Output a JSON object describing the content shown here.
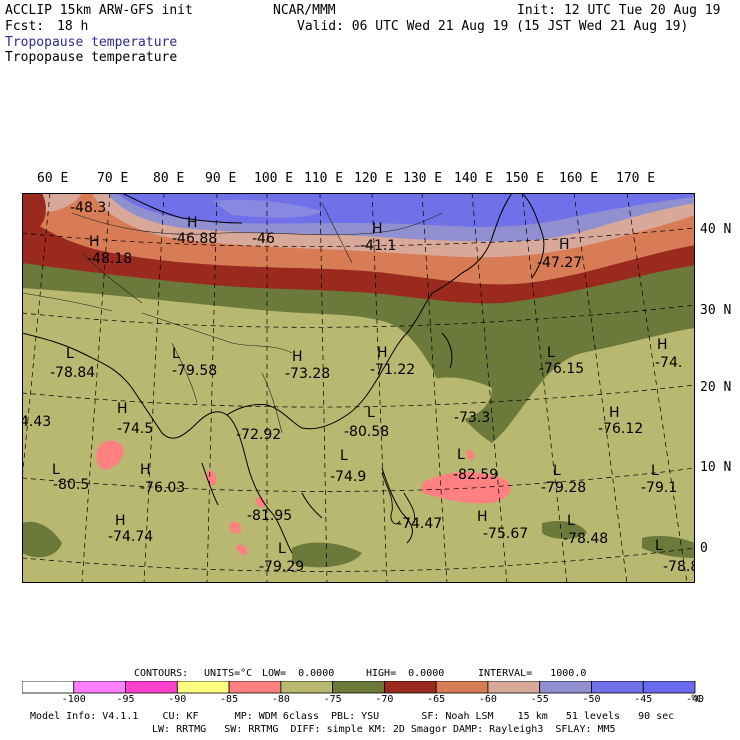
{
  "header": {
    "model": "ACCLIP 15km ARW-GFS init",
    "org": "NCAR/MMM",
    "init": "Init: 12 UTC Tue 20 Aug 19",
    "fcst_label": "Fcst:",
    "fcst_value": "18 h",
    "valid": "Valid: 06 UTC Wed 21 Aug 19 (15 JST Wed 21 Aug 19)",
    "field1": "Tropopause temperature",
    "field2": "Tropopause temperature"
  },
  "longitude_labels": [
    "60 E",
    "70 E",
    "80 E",
    "90 E",
    "100 E",
    "110 E",
    "120 E",
    "130 E",
    "140 E",
    "150 E",
    "160 E",
    "170 E"
  ],
  "latitude_labels": [
    "40 N",
    "30 N",
    "20 N",
    "10 N",
    "0"
  ],
  "map_labels": [
    {
      "text": "-48.3"
    },
    {
      "text": "H"
    },
    {
      "text": "-48.18"
    },
    {
      "text": "H"
    },
    {
      "text": "-46.88"
    },
    {
      "text": "-46"
    },
    {
      "text": "H"
    },
    {
      "text": "-41.1"
    },
    {
      "text": "H"
    },
    {
      "text": "-47.27"
    },
    {
      "text": "L"
    },
    {
      "text": "-78.84"
    },
    {
      "text": "L"
    },
    {
      "text": "-79.58"
    },
    {
      "text": "H"
    },
    {
      "text": "-73.28"
    },
    {
      "text": "H"
    },
    {
      "text": "-71.22"
    },
    {
      "text": "L"
    },
    {
      "text": "-76.15"
    },
    {
      "text": "H"
    },
    {
      "text": "-74."
    },
    {
      "text": "4.43"
    },
    {
      "text": "H"
    },
    {
      "text": "-74.5"
    },
    {
      "text": "-72.92"
    },
    {
      "text": "L"
    },
    {
      "text": "-80.58"
    },
    {
      "text": "-73.3"
    },
    {
      "text": "H"
    },
    {
      "text": "-76.12"
    },
    {
      "text": "L"
    },
    {
      "text": "-80.5"
    },
    {
      "text": "H"
    },
    {
      "text": "-76.03"
    },
    {
      "text": "L"
    },
    {
      "text": "-74.9"
    },
    {
      "text": "L"
    },
    {
      "text": "-82.59"
    },
    {
      "text": "L"
    },
    {
      "text": "-79.28"
    },
    {
      "text": "L"
    },
    {
      "text": "-79.1"
    },
    {
      "text": "H"
    },
    {
      "text": "-74.74"
    },
    {
      "text": "-81.95"
    },
    {
      "text": "-74.47"
    },
    {
      "text": "H"
    },
    {
      "text": "-75.67"
    },
    {
      "text": "L"
    },
    {
      "text": "-78.48"
    },
    {
      "text": "L"
    },
    {
      "text": "-79.29"
    },
    {
      "text": "L"
    },
    {
      "text": "-78.8"
    }
  ],
  "contour_info": {
    "contours": "CONTOURS:",
    "units": "UNITS=°C",
    "low": "LOW=  0.0000",
    "high": "HIGH=  0.0000",
    "interval": "INTERVAL=   1000.0"
  },
  "colorbar": {
    "colors": [
      "#ffffff",
      "#ff80ff",
      "#ff40cc",
      "#ffff80",
      "#ff8080",
      "#b8b870",
      "#6b7a3a",
      "#9a2a1e",
      "#d87c55",
      "#d8a898",
      "#9090d0",
      "#7070e8",
      "#6a6af0"
    ],
    "labels": [
      "-100",
      "-95",
      "-90",
      "-85",
      "-80",
      "-75",
      "-70",
      "-65",
      "-60",
      "-55",
      "-50",
      "-45",
      "-40"
    ],
    "unit": "°C"
  },
  "footer": {
    "line1": "Model Info: V4.1.1    CU: KF      MP: WDM 6class  PBL: YSU       SF: Noah LSM    15 km   51 levels   90 sec",
    "line2": "LW: RRTMG   SW: RRTMG  DIFF: simple KM: 2D Smagor DAMP: Rayleigh3  SFLAY: MM5"
  }
}
